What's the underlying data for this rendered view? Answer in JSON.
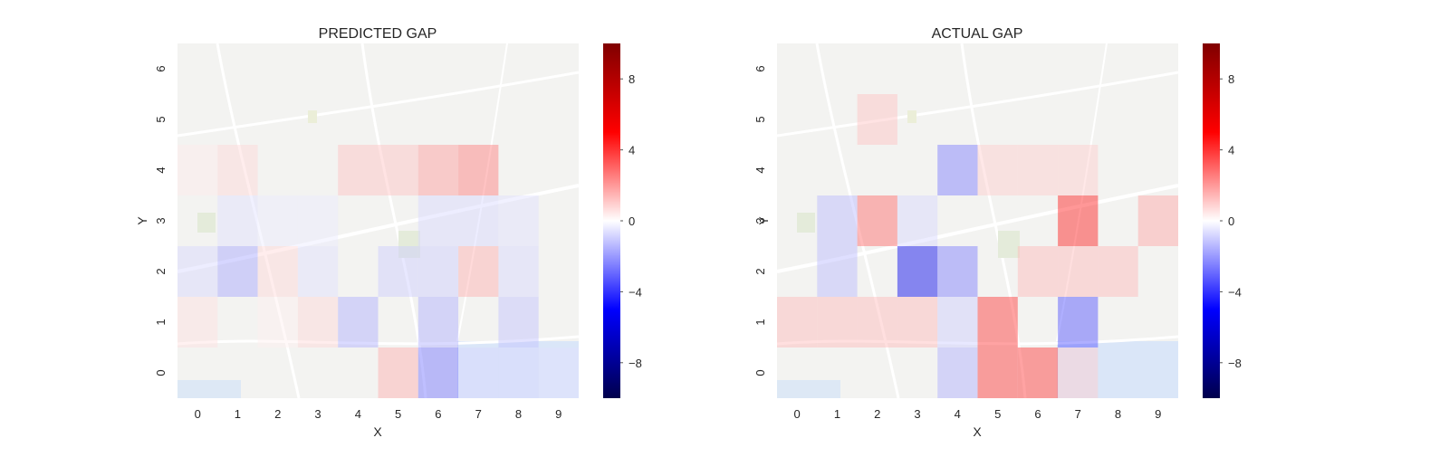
{
  "chart_data": [
    {
      "type": "heatmap",
      "title": "PREDICTED GAP",
      "xlabel": "X",
      "ylabel": "Y",
      "x_categories": [
        "0",
        "1",
        "2",
        "3",
        "4",
        "5",
        "6",
        "7",
        "8",
        "9"
      ],
      "y_categories": [
        "0",
        "1",
        "2",
        "3",
        "4",
        "5",
        "6"
      ],
      "background": "street map",
      "grid_values_rows_y_top_to_bottom": [
        [
          0,
          0,
          0,
          0,
          0,
          0,
          0,
          0,
          0,
          0
        ],
        [
          0,
          0,
          0,
          0,
          0,
          0,
          0,
          0,
          0,
          0
        ],
        [
          0.4,
          0.8,
          0,
          0,
          1.2,
          1.2,
          2.0,
          2.6,
          0,
          0
        ],
        [
          0,
          -0.6,
          -0.4,
          -0.4,
          0,
          0,
          -0.8,
          -0.8,
          -0.6,
          0
        ],
        [
          -0.8,
          -1.8,
          0.8,
          -0.6,
          0,
          -1.0,
          -1.0,
          1.6,
          -0.8,
          0
        ],
        [
          0.6,
          0,
          0.3,
          0.8,
          -1.6,
          0,
          -1.6,
          0,
          -1.2,
          0
        ],
        [
          0,
          0,
          0,
          0,
          0,
          1.6,
          -2.8,
          -0.8,
          -0.8,
          -0.6
        ]
      ],
      "colorbar": {
        "ticks": [
          "8",
          "4",
          "0",
          "−4",
          "−8"
        ],
        "range": [
          -10,
          10
        ]
      },
      "colormap": "seismic"
    },
    {
      "type": "heatmap",
      "title": "ACTUAL GAP",
      "xlabel": "X",
      "ylabel": "Y",
      "x_categories": [
        "0",
        "1",
        "2",
        "3",
        "4",
        "5",
        "6",
        "7",
        "8",
        "9"
      ],
      "y_categories": [
        "0",
        "1",
        "2",
        "3",
        "4",
        "5",
        "6"
      ],
      "background": "street map",
      "grid_values_rows_y_top_to_bottom": [
        [
          0,
          0,
          0,
          0,
          0,
          0,
          0,
          0,
          0,
          0
        ],
        [
          0,
          0,
          1.2,
          0,
          0,
          0,
          0,
          0,
          0,
          0
        ],
        [
          0,
          0,
          0,
          0,
          -2.6,
          1.0,
          1.0,
          1.0,
          0,
          0
        ],
        [
          0,
          -1.4,
          3.0,
          -0.8,
          0,
          0,
          0,
          4.5,
          0,
          1.8
        ],
        [
          0,
          -1.4,
          0,
          -5.5,
          -2.6,
          0,
          1.4,
          1.4,
          1.4,
          0
        ],
        [
          1.4,
          1.4,
          1.4,
          1.4,
          -1.0,
          4.0,
          0,
          -3.5,
          0,
          0
        ],
        [
          0,
          0,
          0,
          0,
          -1.6,
          4.0,
          4.0,
          1.0,
          0,
          0
        ]
      ],
      "colorbar": {
        "ticks": [
          "8",
          "4",
          "0",
          "−4",
          "−8"
        ],
        "range": [
          -10,
          10
        ]
      },
      "colormap": "seismic"
    }
  ]
}
